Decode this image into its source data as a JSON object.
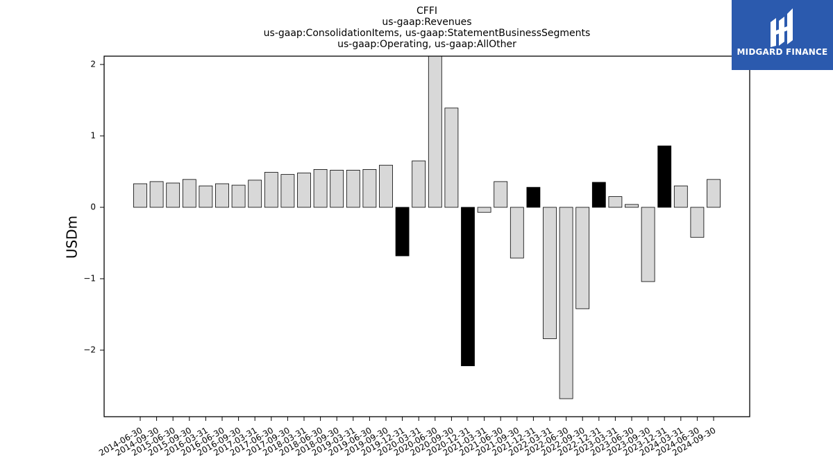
{
  "chart_data": {
    "type": "bar",
    "title_lines": [
      "CFFI",
      "us-gaap:Revenues",
      "us-gaap:ConsolidationItems, us-gaap:StatementBusinessSegments",
      "us-gaap:Operating, us-gaap:AllOther"
    ],
    "ylabel": "USDm",
    "ylim": [
      -2.9,
      2.1
    ],
    "yticks": [
      2,
      1,
      0,
      -1,
      -2
    ],
    "ytick_labels": [
      "2",
      "1",
      "0",
      "−1",
      "−2"
    ],
    "categories": [
      "2014-06-30",
      "2014-09-30",
      "2015-06-30",
      "2015-09-30",
      "2016-03-31",
      "2016-06-30",
      "2016-09-30",
      "2017-03-31",
      "2017-06-30",
      "2017-09-30",
      "2018-03-31",
      "2018-06-30",
      "2018-09-30",
      "2019-03-31",
      "2019-06-30",
      "2019-09-30",
      "2019-12-31",
      "2020-03-31",
      "2020-06-30",
      "2020-09-30",
      "2020-12-31",
      "2021-03-31",
      "2021-06-30",
      "2021-09-30",
      "2021-12-31",
      "2022-03-31",
      "2022-06-30",
      "2022-09-30",
      "2022-12-31",
      "2023-03-31",
      "2023-06-30",
      "2023-09-30",
      "2023-12-31",
      "2024-03-31",
      "2024-06-30",
      "2024-09-30"
    ],
    "values": [
      0.33,
      0.36,
      0.34,
      0.39,
      0.3,
      0.33,
      0.31,
      0.38,
      0.49,
      0.46,
      0.48,
      0.53,
      0.52,
      0.52,
      0.53,
      0.59,
      -0.68,
      0.65,
      2.3,
      1.39,
      -2.22,
      -0.07,
      0.36,
      -0.71,
      0.28,
      -1.84,
      -2.68,
      -1.42,
      0.35,
      0.15,
      0.04,
      -1.04,
      0.86,
      0.3,
      -0.42,
      0.39
    ],
    "highlight": [
      false,
      false,
      false,
      false,
      false,
      false,
      false,
      false,
      false,
      false,
      false,
      false,
      false,
      false,
      false,
      false,
      true,
      false,
      false,
      false,
      true,
      false,
      false,
      false,
      true,
      false,
      false,
      false,
      true,
      false,
      false,
      false,
      true,
      false,
      false,
      false
    ],
    "colors": {
      "normal": "#d8d8d8",
      "highlight": "#000000",
      "edge": "#000000"
    },
    "grid": false
  },
  "logo": {
    "text": "MIDGARD FINANCE",
    "background": "#2b5aae"
  }
}
